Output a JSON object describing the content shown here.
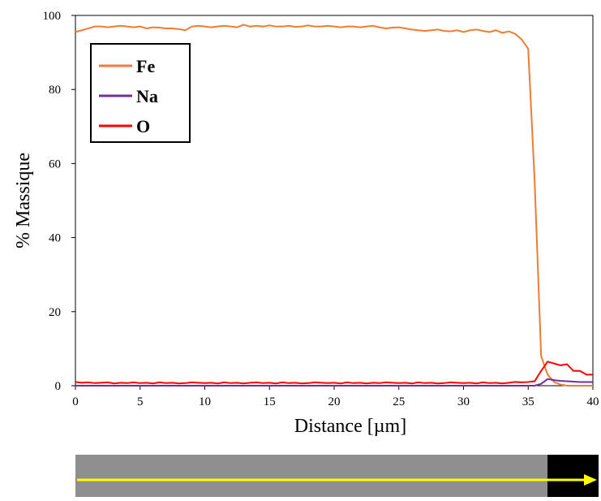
{
  "chart_data": {
    "type": "line",
    "x_label": "Distance [µm]",
    "y_label": "% Massique",
    "x": [
      0,
      0.5,
      1,
      1.5,
      2,
      2.5,
      3,
      3.5,
      4,
      4.5,
      5,
      5.5,
      6,
      6.5,
      7,
      7.5,
      8,
      8.5,
      9,
      9.5,
      10,
      10.5,
      11,
      11.5,
      12,
      12.5,
      13,
      13.5,
      14,
      14.5,
      15,
      15.5,
      16,
      16.5,
      17,
      17.5,
      18,
      18.5,
      19,
      19.5,
      20,
      20.5,
      21,
      21.5,
      22,
      22.5,
      23,
      23.5,
      24,
      24.5,
      25,
      25.5,
      26,
      26.5,
      27,
      27.5,
      28,
      28.5,
      29,
      29.5,
      30,
      30.5,
      31,
      31.5,
      32,
      32.5,
      33,
      33.5,
      34,
      34.5,
      35,
      35.5,
      36,
      36.5,
      37,
      37.5,
      38,
      38.5,
      39,
      39.5,
      40
    ],
    "series": [
      {
        "name": "Fe",
        "color": "#ed7d31",
        "values": [
          95.5,
          96,
          96.5,
          97,
          97,
          96.8,
          97,
          97.2,
          97,
          96.8,
          97,
          96.5,
          96.8,
          96.7,
          96.5,
          96.5,
          96.3,
          96,
          97,
          97.2,
          97,
          96.8,
          97,
          97.2,
          97,
          96.8,
          97.5,
          97,
          97.2,
          97,
          97.3,
          97,
          97,
          97.2,
          96.9,
          97,
          97.3,
          97,
          97,
          97.2,
          97,
          96.8,
          97,
          97,
          96.8,
          97,
          97.2,
          96.8,
          96.5,
          96.7,
          96.8,
          96.5,
          96.2,
          96,
          95.8,
          96,
          96.2,
          95.8,
          95.7,
          96,
          95.5,
          96,
          96.2,
          95.8,
          95.5,
          96,
          95.3,
          95.7,
          95,
          93.5,
          91,
          55,
          8,
          3,
          1,
          0.3,
          0,
          0,
          0,
          0,
          0
        ]
      },
      {
        "name": "Na",
        "color": "#7030a0",
        "values": [
          0,
          0,
          0,
          0,
          0,
          0,
          0,
          0,
          0,
          0,
          0,
          0,
          0,
          0,
          0,
          0,
          0,
          0,
          0,
          0,
          0,
          0,
          0,
          0,
          0,
          0,
          0,
          0,
          0,
          0,
          0,
          0,
          0,
          0,
          0,
          0,
          0,
          0,
          0,
          0,
          0,
          0,
          0,
          0,
          0,
          0,
          0,
          0,
          0,
          0,
          0,
          0,
          0,
          0,
          0,
          0,
          0,
          0,
          0,
          0,
          0,
          0,
          0,
          0,
          0,
          0,
          0,
          0,
          0,
          0,
          0,
          0,
          0.5,
          1.8,
          1.5,
          1.3,
          1.2,
          1.1,
          1,
          1,
          1
        ]
      },
      {
        "name": "O",
        "color": "#ff0000",
        "values": [
          1,
          0.8,
          0.9,
          0.7,
          0.8,
          0.9,
          0.6,
          0.8,
          0.7,
          0.9,
          0.7,
          0.8,
          0.6,
          0.9,
          0.7,
          0.8,
          0.6,
          0.7,
          0.9,
          0.8,
          0.7,
          0.8,
          0.6,
          0.9,
          0.7,
          0.8,
          0.6,
          0.8,
          0.9,
          0.7,
          0.8,
          0.6,
          0.9,
          0.7,
          0.8,
          0.6,
          0.7,
          0.9,
          0.8,
          0.7,
          0.8,
          0.6,
          0.9,
          0.7,
          0.8,
          0.6,
          0.8,
          0.7,
          0.9,
          0.8,
          0.7,
          0.8,
          0.6,
          0.9,
          0.7,
          0.8,
          0.6,
          0.7,
          0.9,
          0.8,
          0.7,
          0.8,
          0.6,
          0.9,
          0.7,
          0.8,
          0.6,
          0.8,
          1,
          0.9,
          1,
          1.2,
          4,
          6.5,
          6,
          5.5,
          5.8,
          4,
          4,
          3,
          3
        ]
      }
    ],
    "xlim": [
      0,
      40
    ],
    "xticks": [
      0,
      5,
      10,
      15,
      20,
      25,
      30,
      35,
      40
    ],
    "ylim": [
      0,
      100
    ],
    "yticks": [
      0,
      20,
      40,
      60,
      80,
      100
    ],
    "legend": "upper-left"
  }
}
